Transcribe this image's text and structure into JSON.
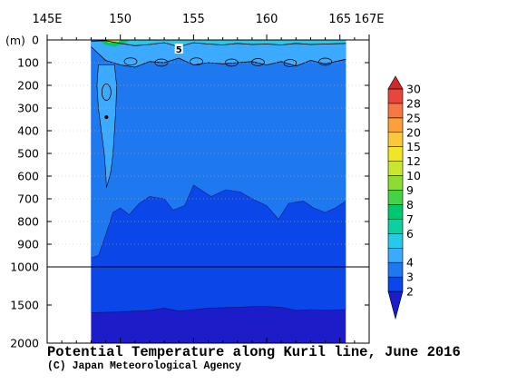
{
  "title": "Potential Temperature along Kuril line, June 2016",
  "credit": "(C) Japan Meteorological Agency",
  "chart_data": {
    "type": "contour",
    "x_axis": {
      "ticks": [
        "145E",
        "150",
        "155",
        "160",
        "165",
        "167E"
      ],
      "tick_values": [
        145,
        150,
        155,
        160,
        165,
        167
      ],
      "minor_ticks": [
        146,
        147,
        148,
        149,
        151,
        152,
        153,
        154,
        156,
        157,
        158,
        159,
        161,
        162,
        163,
        164,
        166
      ],
      "range": [
        145,
        167
      ]
    },
    "y_axis": {
      "unit_label": "(m)",
      "upper_ticks": [
        "0",
        "100",
        "200",
        "300",
        "400",
        "500",
        "600",
        "700",
        "800",
        "900",
        "1000"
      ],
      "lower_ticks": [
        "1500",
        "2000"
      ],
      "break_at": 1000,
      "range": [
        0,
        2000
      ],
      "inverted": true
    },
    "data_extent": {
      "lon_min": 148,
      "lon_max": 165.4
    },
    "colorbar": {
      "levels": [
        "2",
        "3",
        "4",
        "5",
        "6",
        "7",
        "8",
        "9",
        "10",
        "12",
        "15",
        "20",
        "25",
        "28",
        "30"
      ],
      "colors": [
        "#1c1cc8",
        "#0a46e8",
        "#1e78f0",
        "#3caaff",
        "#28c8e8",
        "#0fcfa0",
        "#00c870",
        "#46d246",
        "#8cdc32",
        "#c8e632",
        "#f0e628",
        "#fac83c",
        "#faa03c",
        "#f57846",
        "#e6463c",
        "#d22828"
      ],
      "labels": [
        "2",
        "3",
        "4",
        "6",
        "7",
        "8",
        "9",
        "10",
        "12",
        "15",
        "20",
        "25",
        "28",
        "30"
      ]
    },
    "contour_labels": [
      {
        "text": "5",
        "lon": 154,
        "depth": 40
      }
    ],
    "regions": [
      {
        "range": "<2",
        "color": "#1c1cc8",
        "description": "deep water below about 1400-1600 m"
      },
      {
        "range": "2-3",
        "color": "#0a46e8",
        "description": "roughly 700-1500 m"
      },
      {
        "range": "3-4",
        "color": "#1e78f0",
        "description": "roughly 100-700 m"
      },
      {
        "range": "4-5",
        "color": "#3caaff",
        "description": "western plume near 149E, 200-650 m"
      },
      {
        "range": ">5",
        "color": "#28c8e8",
        "description": "thin surface layer, warmest near 149-150E"
      }
    ],
    "surface_profile": [
      {
        "lon": 148,
        "depth": 5
      },
      {
        "lon": 149,
        "depth": 3
      },
      {
        "lon": 150,
        "depth": 15
      },
      {
        "lon": 151,
        "depth": 25
      },
      {
        "lon": 152,
        "depth": 20
      },
      {
        "lon": 153,
        "depth": 12
      },
      {
        "lon": 154,
        "depth": 30
      },
      {
        "lon": 155,
        "depth": 12
      },
      {
        "lon": 156,
        "depth": 18
      },
      {
        "lon": 157,
        "depth": 22
      },
      {
        "lon": 158,
        "depth": 15
      },
      {
        "lon": 159,
        "depth": 20
      },
      {
        "lon": 160,
        "depth": 18
      },
      {
        "lon": 161,
        "depth": 22
      },
      {
        "lon": 162,
        "depth": 15
      },
      {
        "lon": 163,
        "depth": 20
      },
      {
        "lon": 164,
        "depth": 18
      },
      {
        "lon": 165.4,
        "depth": 15
      }
    ],
    "boundary_4C": [
      {
        "lon": 148,
        "depth": 30
      },
      {
        "lon": 149,
        "depth": 90
      },
      {
        "lon": 150,
        "depth": 110
      },
      {
        "lon": 151,
        "depth": 120
      },
      {
        "lon": 152,
        "depth": 95
      },
      {
        "lon": 153,
        "depth": 100
      },
      {
        "lon": 154,
        "depth": 80
      },
      {
        "lon": 155,
        "depth": 110
      },
      {
        "lon": 156,
        "depth": 100
      },
      {
        "lon": 157,
        "depth": 105
      },
      {
        "lon": 158,
        "depth": 100
      },
      {
        "lon": 159,
        "depth": 95
      },
      {
        "lon": 160,
        "depth": 110
      },
      {
        "lon": 161,
        "depth": 95
      },
      {
        "lon": 162,
        "depth": 115
      },
      {
        "lon": 163,
        "depth": 90
      },
      {
        "lon": 164,
        "depth": 105
      },
      {
        "lon": 165.4,
        "depth": 85
      }
    ],
    "boundary_3C": [
      {
        "lon": 148,
        "depth": 960
      },
      {
        "lon": 148.5,
        "depth": 950
      },
      {
        "lon": 149,
        "depth": 860
      },
      {
        "lon": 149.5,
        "depth": 760
      },
      {
        "lon": 150,
        "depth": 740
      },
      {
        "lon": 150.6,
        "depth": 770
      },
      {
        "lon": 151.3,
        "depth": 720
      },
      {
        "lon": 152,
        "depth": 690
      },
      {
        "lon": 153,
        "depth": 700
      },
      {
        "lon": 153.6,
        "depth": 750
      },
      {
        "lon": 154.4,
        "depth": 730
      },
      {
        "lon": 155,
        "depth": 640
      },
      {
        "lon": 155.5,
        "depth": 660
      },
      {
        "lon": 156.2,
        "depth": 690
      },
      {
        "lon": 157.2,
        "depth": 660
      },
      {
        "lon": 158.2,
        "depth": 670
      },
      {
        "lon": 159,
        "depth": 700
      },
      {
        "lon": 160,
        "depth": 730
      },
      {
        "lon": 160.8,
        "depth": 790
      },
      {
        "lon": 161.5,
        "depth": 720
      },
      {
        "lon": 162.5,
        "depth": 710
      },
      {
        "lon": 163.2,
        "depth": 740
      },
      {
        "lon": 164,
        "depth": 760
      },
      {
        "lon": 164.7,
        "depth": 740
      },
      {
        "lon": 165.4,
        "depth": 710
      }
    ],
    "boundary_2C": [
      {
        "lon": 148,
        "depth": 1600
      },
      {
        "lon": 150,
        "depth": 1590
      },
      {
        "lon": 152,
        "depth": 1570
      },
      {
        "lon": 153,
        "depth": 1540
      },
      {
        "lon": 154,
        "depth": 1580
      },
      {
        "lon": 155,
        "depth": 1560
      },
      {
        "lon": 156,
        "depth": 1540
      },
      {
        "lon": 158,
        "depth": 1530
      },
      {
        "lon": 159,
        "depth": 1520
      },
      {
        "lon": 160,
        "depth": 1520
      },
      {
        "lon": 161,
        "depth": 1530
      },
      {
        "lon": 162,
        "depth": 1570
      },
      {
        "lon": 163,
        "depth": 1560
      },
      {
        "lon": 164,
        "depth": 1570
      },
      {
        "lon": 165.4,
        "depth": 1560
      }
    ],
    "plume_4C": {
      "left": [
        {
          "lon": 148.5,
          "depth": 110
        },
        {
          "lon": 148.4,
          "depth": 200
        },
        {
          "lon": 148.5,
          "depth": 300
        },
        {
          "lon": 148.7,
          "depth": 400
        },
        {
          "lon": 148.9,
          "depth": 500
        },
        {
          "lon": 149.0,
          "depth": 580
        },
        {
          "lon": 149.05,
          "depth": 650
        }
      ],
      "right": [
        {
          "lon": 149.6,
          "depth": 110
        },
        {
          "lon": 149.75,
          "depth": 200
        },
        {
          "lon": 149.7,
          "depth": 300
        },
        {
          "lon": 149.6,
          "depth": 400
        },
        {
          "lon": 149.5,
          "depth": 500
        },
        {
          "lon": 149.35,
          "depth": 580
        },
        {
          "lon": 149.1,
          "depth": 640
        }
      ]
    }
  }
}
